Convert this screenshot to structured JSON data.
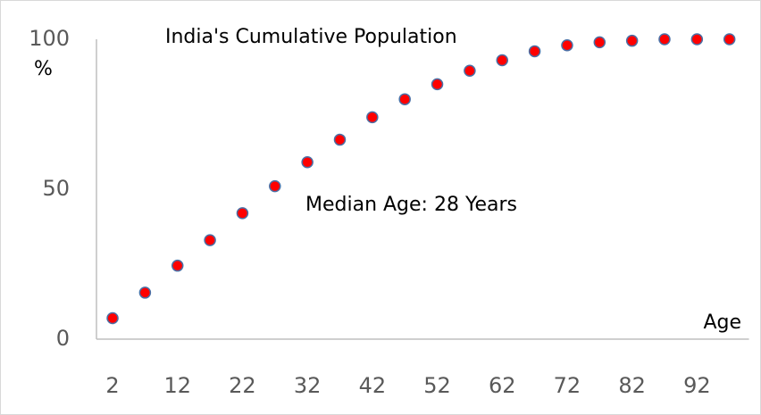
{
  "chart_data": {
    "type": "scatter",
    "title": "India's Cumulative Population",
    "annotation": "Median Age: 28 Years",
    "xlabel": "Age",
    "ylabel": "%",
    "x": [
      2,
      7,
      12,
      17,
      22,
      27,
      32,
      37,
      42,
      47,
      52,
      57,
      62,
      67,
      72,
      77,
      82,
      87,
      92,
      97
    ],
    "values": [
      7,
      15.5,
      24.5,
      33,
      42,
      51,
      59,
      66.5,
      74,
      80,
      85,
      89.5,
      93,
      96,
      98,
      99,
      99.5,
      100,
      100,
      100
    ],
    "color": "#ff0000",
    "edgecolor": "#4a6fa5",
    "xlim": [
      0,
      100
    ],
    "ylim": [
      0,
      100
    ],
    "xticks": [
      2,
      12,
      22,
      32,
      42,
      52,
      62,
      72,
      82,
      92
    ],
    "yticks": [
      0,
      50,
      100
    ]
  }
}
